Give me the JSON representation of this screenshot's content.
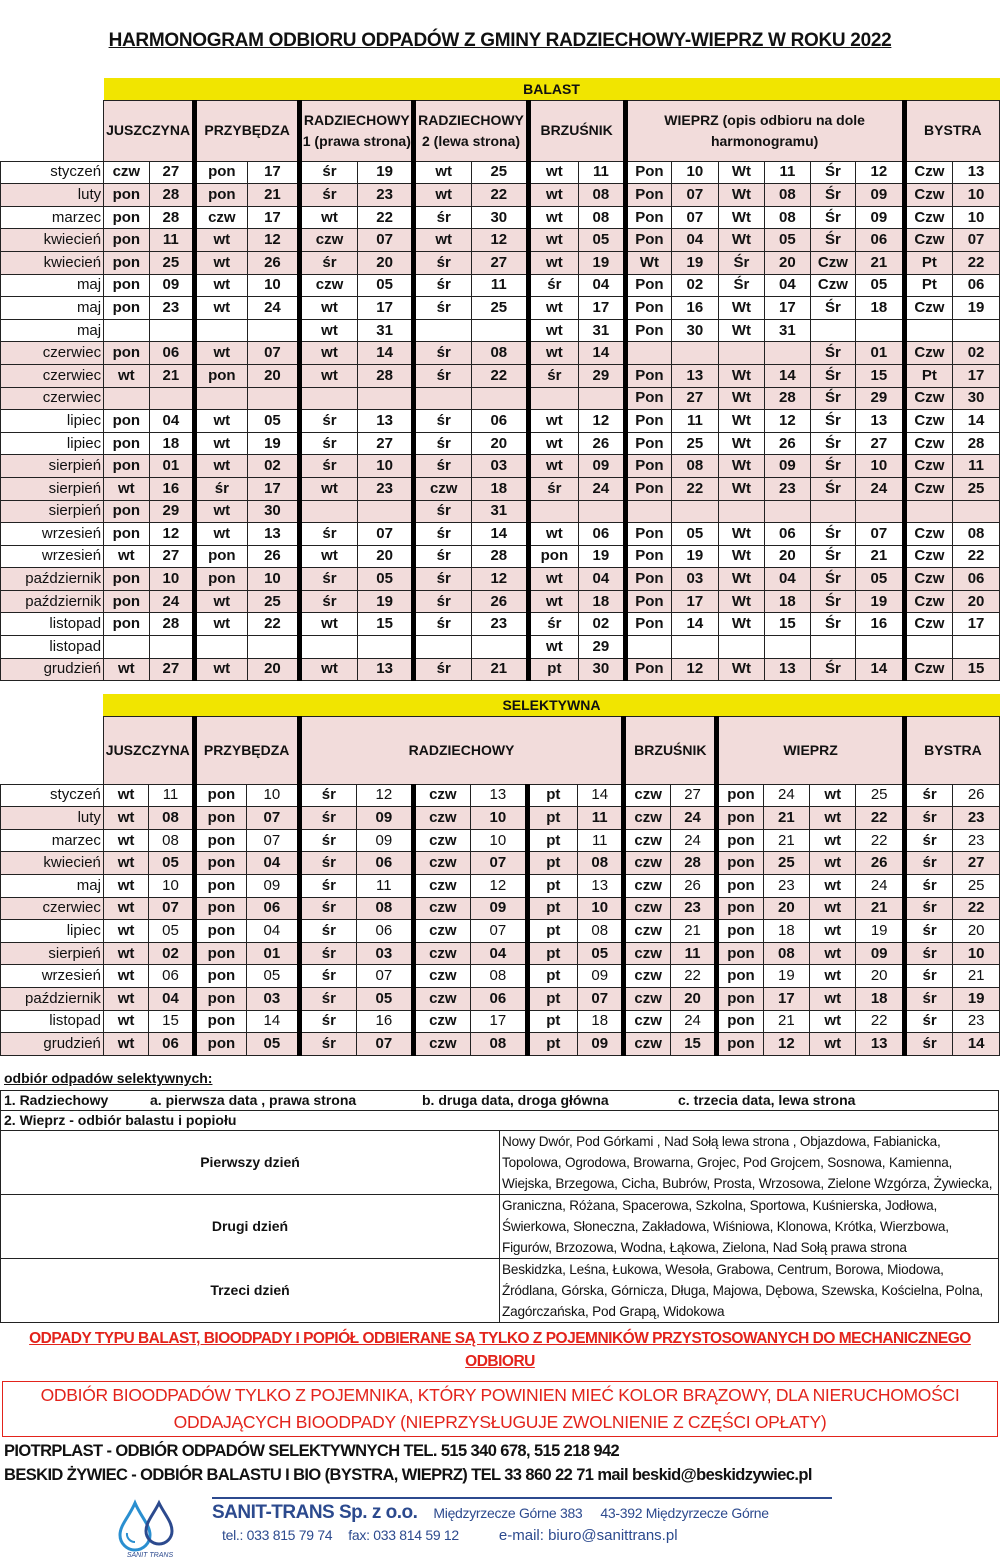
{
  "title": "HARMONOGRAM ODBIORU ODPADÓW Z GMINY RADZIECHOWY-WIEPRZ W ROKU 2022",
  "balast": {
    "section": "BALAST",
    "headers": [
      "JUSZCZYNA",
      "PRZYBĘDZA",
      "RADZIECHOWY 1 (prawa strona)",
      "RADZIECHOWY 2 (lewa strona)",
      "BRZUŚNIK",
      "WIEPRZ (opis odbioru na dole harmonogramu)",
      "BYSTRA"
    ],
    "rows": [
      [
        "styczeń",
        "czw",
        "27",
        "pon",
        "17",
        "śr",
        "19",
        "wt",
        "25",
        "wt",
        "11",
        "Pon",
        "10",
        "Wt",
        "11",
        "Śr",
        "12",
        "Czw",
        "13"
      ],
      [
        "luty",
        "pon",
        "28",
        "pon",
        "21",
        "śr",
        "23",
        "wt",
        "22",
        "wt",
        "08",
        "Pon",
        "07",
        "Wt",
        "08",
        "Śr",
        "09",
        "Czw",
        "10"
      ],
      [
        "marzec",
        "pon",
        "28",
        "czw",
        "17",
        "wt",
        "22",
        "śr",
        "30",
        "wt",
        "08",
        "Pon",
        "07",
        "Wt",
        "08",
        "Śr",
        "09",
        "Czw",
        "10"
      ],
      [
        "kwiecień",
        "pon",
        "11",
        "wt",
        "12",
        "czw",
        "07",
        "wt",
        "12",
        "wt",
        "05",
        "Pon",
        "04",
        "Wt",
        "05",
        "Śr",
        "06",
        "Czw",
        "07"
      ],
      [
        "kwiecień",
        "pon",
        "25",
        "wt",
        "26",
        "śr",
        "20",
        "śr",
        "27",
        "wt",
        "19",
        "Wt",
        "19",
        "Śr",
        "20",
        "Czw",
        "21",
        "Pt",
        "22"
      ],
      [
        "maj",
        "pon",
        "09",
        "wt",
        "10",
        "czw",
        "05",
        "śr",
        "11",
        "śr",
        "04",
        "Pon",
        "02",
        "Śr",
        "04",
        "Czw",
        "05",
        "Pt",
        "06"
      ],
      [
        "maj",
        "pon",
        "23",
        "wt",
        "24",
        "wt",
        "17",
        "śr",
        "25",
        "wt",
        "17",
        "Pon",
        "16",
        "Wt",
        "17",
        "Śr",
        "18",
        "Czw",
        "19"
      ],
      [
        "maj",
        "",
        "",
        "",
        "",
        "wt",
        "31",
        "",
        "",
        "wt",
        "31",
        "Pon",
        "30",
        "Wt",
        "31",
        "",
        "",
        "",
        ""
      ],
      [
        "czerwiec",
        "pon",
        "06",
        "wt",
        "07",
        "wt",
        "14",
        "śr",
        "08",
        "wt",
        "14",
        "",
        "",
        "",
        "",
        "Śr",
        "01",
        "Czw",
        "02"
      ],
      [
        "czerwiec",
        "wt",
        "21",
        "pon",
        "20",
        "wt",
        "28",
        "śr",
        "22",
        "śr",
        "29",
        "Pon",
        "13",
        "Wt",
        "14",
        "Śr",
        "15",
        "Pt",
        "17"
      ],
      [
        "czerwiec",
        "",
        "",
        "",
        "",
        "",
        "",
        "",
        "",
        "",
        "",
        "Pon",
        "27",
        "Wt",
        "28",
        "Śr",
        "29",
        "Czw",
        "30"
      ],
      [
        "lipiec",
        "pon",
        "04",
        "wt",
        "05",
        "śr",
        "13",
        "śr",
        "06",
        "wt",
        "12",
        "Pon",
        "11",
        "Wt",
        "12",
        "Śr",
        "13",
        "Czw",
        "14"
      ],
      [
        "lipiec",
        "pon",
        "18",
        "wt",
        "19",
        "śr",
        "27",
        "śr",
        "20",
        "wt",
        "26",
        "Pon",
        "25",
        "Wt",
        "26",
        "Śr",
        "27",
        "Czw",
        "28"
      ],
      [
        "sierpień",
        "pon",
        "01",
        "wt",
        "02",
        "śr",
        "10",
        "śr",
        "03",
        "wt",
        "09",
        "Pon",
        "08",
        "Wt",
        "09",
        "Śr",
        "10",
        "Czw",
        "11"
      ],
      [
        "sierpień",
        "wt",
        "16",
        "śr",
        "17",
        "wt",
        "23",
        "czw",
        "18",
        "śr",
        "24",
        "Pon",
        "22",
        "Wt",
        "23",
        "Śr",
        "24",
        "Czw",
        "25"
      ],
      [
        "sierpień",
        "pon",
        "29",
        "wt",
        "30",
        "",
        "",
        "śr",
        "31",
        "",
        "",
        "",
        "",
        "",
        "",
        "",
        "",
        "",
        ""
      ],
      [
        "wrzesień",
        "pon",
        "12",
        "wt",
        "13",
        "śr",
        "07",
        "śr",
        "14",
        "wt",
        "06",
        "Pon",
        "05",
        "Wt",
        "06",
        "Śr",
        "07",
        "Czw",
        "08"
      ],
      [
        "wrzesień",
        "wt",
        "27",
        "pon",
        "26",
        "wt",
        "20",
        "śr",
        "28",
        "pon",
        "19",
        "Pon",
        "19",
        "Wt",
        "20",
        "Śr",
        "21",
        "Czw",
        "22"
      ],
      [
        "październik",
        "pon",
        "10",
        "pon",
        "10",
        "śr",
        "05",
        "śr",
        "12",
        "wt",
        "04",
        "Pon",
        "03",
        "Wt",
        "04",
        "Śr",
        "05",
        "Czw",
        "06"
      ],
      [
        "październik",
        "pon",
        "24",
        "wt",
        "25",
        "śr",
        "19",
        "śr",
        "26",
        "wt",
        "18",
        "Pon",
        "17",
        "Wt",
        "18",
        "Śr",
        "19",
        "Czw",
        "20"
      ],
      [
        "listopad",
        "pon",
        "28",
        "wt",
        "22",
        "wt",
        "15",
        "śr",
        "23",
        "śr",
        "02",
        "Pon",
        "14",
        "Wt",
        "15",
        "Śr",
        "16",
        "Czw",
        "17"
      ],
      [
        "listopad",
        "",
        "",
        "",
        "",
        "",
        "",
        "",
        "",
        "wt",
        "29",
        "",
        "",
        "",
        "",
        "",
        "",
        "",
        ""
      ],
      [
        "grudzień",
        "wt",
        "27",
        "wt",
        "20",
        "wt",
        "13",
        "śr",
        "21",
        "pt",
        "30",
        "Pon",
        "12",
        "Wt",
        "13",
        "Śr",
        "14",
        "Czw",
        "15"
      ]
    ]
  },
  "selektywna": {
    "section": "SELEKTYWNA",
    "headers": [
      "JUSZCZYNA",
      "PRZYBĘDZA",
      "RADZIECHOWY",
      "BRZUŚNIK",
      "WIEPRZ",
      "BYSTRA"
    ],
    "rows": [
      [
        "styczeń",
        "wt",
        "11",
        "pon",
        "10",
        "śr",
        "12",
        "czw",
        "13",
        "pt",
        "14",
        "czw",
        "27",
        "pon",
        "24",
        "wt",
        "25",
        "śr",
        "26"
      ],
      [
        "luty",
        "wt",
        "08",
        "pon",
        "07",
        "śr",
        "09",
        "czw",
        "10",
        "pt",
        "11",
        "czw",
        "24",
        "pon",
        "21",
        "wt",
        "22",
        "śr",
        "23"
      ],
      [
        "marzec",
        "wt",
        "08",
        "pon",
        "07",
        "śr",
        "09",
        "czw",
        "10",
        "pt",
        "11",
        "czw",
        "24",
        "pon",
        "21",
        "wt",
        "22",
        "śr",
        "23"
      ],
      [
        "kwiecień",
        "wt",
        "05",
        "pon",
        "04",
        "śr",
        "06",
        "czw",
        "07",
        "pt",
        "08",
        "czw",
        "28",
        "pon",
        "25",
        "wt",
        "26",
        "śr",
        "27"
      ],
      [
        "maj",
        "wt",
        "10",
        "pon",
        "09",
        "śr",
        "11",
        "czw",
        "12",
        "pt",
        "13",
        "czw",
        "26",
        "pon",
        "23",
        "wt",
        "24",
        "śr",
        "25"
      ],
      [
        "czerwiec",
        "wt",
        "07",
        "pon",
        "06",
        "śr",
        "08",
        "czw",
        "09",
        "pt",
        "10",
        "czw",
        "23",
        "pon",
        "20",
        "wt",
        "21",
        "śr",
        "22"
      ],
      [
        "lipiec",
        "wt",
        "05",
        "pon",
        "04",
        "śr",
        "06",
        "czw",
        "07",
        "pt",
        "08",
        "czw",
        "21",
        "pon",
        "18",
        "wt",
        "19",
        "śr",
        "20"
      ],
      [
        "sierpień",
        "wt",
        "02",
        "pon",
        "01",
        "śr",
        "03",
        "czw",
        "04",
        "pt",
        "05",
        "czw",
        "11",
        "pon",
        "08",
        "wt",
        "09",
        "śr",
        "10"
      ],
      [
        "wrzesień",
        "wt",
        "06",
        "pon",
        "05",
        "śr",
        "07",
        "czw",
        "08",
        "pt",
        "09",
        "czw",
        "22",
        "pon",
        "19",
        "wt",
        "20",
        "śr",
        "21"
      ],
      [
        "październik",
        "wt",
        "04",
        "pon",
        "03",
        "śr",
        "05",
        "czw",
        "06",
        "pt",
        "07",
        "czw",
        "20",
        "pon",
        "17",
        "wt",
        "18",
        "śr",
        "19"
      ],
      [
        "listopad",
        "wt",
        "15",
        "pon",
        "14",
        "śr",
        "16",
        "czw",
        "17",
        "pt",
        "18",
        "czw",
        "24",
        "pon",
        "21",
        "wt",
        "22",
        "śr",
        "23"
      ],
      [
        "grudzień",
        "wt",
        "06",
        "pon",
        "05",
        "śr",
        "07",
        "czw",
        "08",
        "pt",
        "09",
        "czw",
        "15",
        "pon",
        "12",
        "wt",
        "13",
        "śr",
        "14"
      ]
    ]
  },
  "notes": {
    "title": "odbiór odpadów selektywnych:",
    "radziechowy": {
      "label": "1. Radziechowy",
      "a": "a.   pierwsza data , prawa strona",
      "b": "b.   druga data, droga główna",
      "c": "c.   trzecia data, lewa strona"
    },
    "wieprz_label": "2. Wieprz  - odbiór balastu i popiołu",
    "days": [
      {
        "label": "Pierwszy dzień",
        "streets": "Nowy Dwór, Pod Górkami , Nad Sołą lewa strona , Objazdowa, Fabianicka, Topolowa, Ogrodowa, Browarna, Grojec, Pod Grojcem, Sosnowa, Kamienna, Wiejska, Brzegowa, Cicha, Bubrów, Prosta, Wrzosowa, Zielone Wzgórza, Żywiecka,"
      },
      {
        "label": "Drugi dzień",
        "streets": "Graniczna, Różana, Spacerowa, Szkolna, Sportowa, Kuśnierska, Jodłowa, Świerkowa, Słoneczna, Zakładowa, Wiśniowa, Klonowa, Krótka, Wierzbowa, Figurów, Brzozowa, Wodna, Łąkowa, Zielona, Nad Sołą prawa strona"
      },
      {
        "label": "Trzeci dzień",
        "streets": "Beskidzka, Leśna, Łukowa, Wesoła, Grabowa, Centrum, Borowa, Miodowa, Źródlana, Górska, Górnicza, Długa, Majowa, Dębowa, Szewska, Kościelna, Polna, Zagórczańska, Pod Grapą, Widokowa"
      }
    ]
  },
  "warning1": "ODPADY TYPU BALAST, BIOODPADY I POPIÓŁ ODBIERANE SĄ TYLKO Z POJEMNIKÓW PRZYSTOSOWANYCH DO MECHANICZNEGO",
  "warning1b": "ODBIORU",
  "warning2a": "ODBIÓR BIOODPADÓW TYLKO Z POJEMNIKA, KTÓRY POWINIEN MIEĆ KOLOR BRĄZOWY, DLA NIERUCHOMOŚCI",
  "warning2b": "ODDAJĄCYCH BIOODPADY (NIEPRZYSŁUGUJE ZWOLNIENIE Z CZĘŚCI OPŁATY)",
  "contact1": "PIOTRPLAST - ODBIÓR ODPADÓW SELEKTYWNYCH TEL. 515 340 678, 515 218 942",
  "contact2": "BESKID ŻYWIEC - ODBIÓR BALASTU I BIO (BYSTRA, WIEPRZ) TEL 33 860 22 71 mail beskid@beskidzywiec.pl",
  "company": {
    "logo_text": "SANIT TRANS",
    "name": "SANIT-TRANS Sp. z o.o.",
    "address1": "Międzyrzecze Górne 383",
    "address2": "43-392 Międzyrzecze Górne",
    "tel": "tel.: 033 815 79 74",
    "fax": "fax: 033 814 59 12",
    "email": "e-mail: biuro@sanittrans.pl"
  },
  "colors": {
    "header_yellow": "#f1e500",
    "row_pink": "#f2dcdb",
    "warning_red": "#e3231b",
    "brand_blue": "#2c4a8e"
  }
}
